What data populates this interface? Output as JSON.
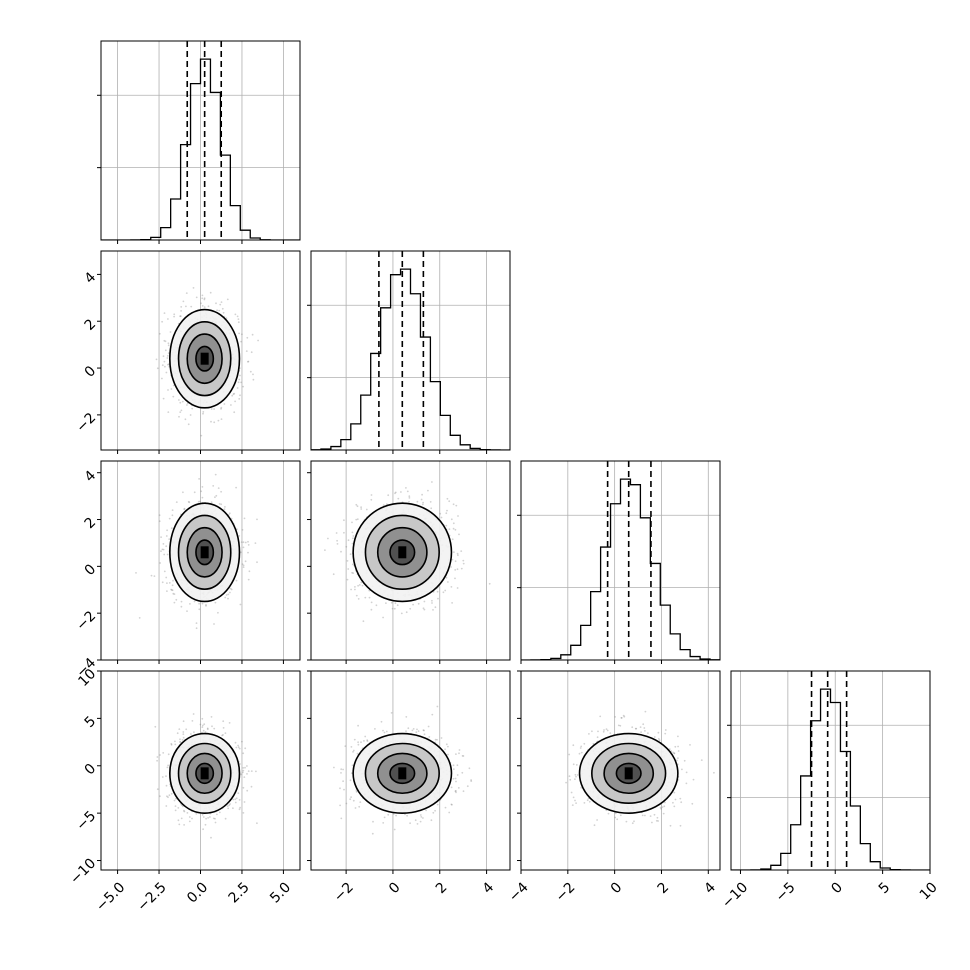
{
  "chart_data": {
    "type": "corner",
    "title": "",
    "parameters": [
      {
        "index": 0,
        "range": [
          -6,
          6
        ],
        "ticks": [
          -5.0,
          -2.5,
          0.0,
          2.5,
          5.0
        ],
        "tick_labels": [
          "−5.0",
          "−2.5",
          "0.0",
          "2.5",
          "5.0"
        ],
        "quantiles": [
          -0.8,
          0.25,
          1.25
        ],
        "mean": 0.25,
        "sd": 1.0
      },
      {
        "index": 1,
        "range": [
          -3.5,
          5
        ],
        "ticks": [
          -2,
          0,
          2,
          4
        ],
        "tick_labels": [
          "−2",
          "0",
          "2",
          "4"
        ],
        "quantiles": [
          -0.6,
          0.4,
          1.3
        ],
        "mean": 0.4,
        "sd": 1.0
      },
      {
        "index": 2,
        "range": [
          -4,
          4.5
        ],
        "ticks": [
          -4,
          -2,
          0,
          2,
          4
        ],
        "tick_labels": [
          "−4",
          "−2",
          "0",
          "2",
          "4"
        ],
        "quantiles": [
          -0.3,
          0.6,
          1.55
        ],
        "mean": 0.6,
        "sd": 1.0
      },
      {
        "index": 3,
        "range": [
          -11,
          10
        ],
        "ticks": [
          -10,
          -5,
          0,
          5,
          10
        ],
        "tick_labels": [
          "−10",
          "−5",
          "0",
          "5",
          "10"
        ],
        "quantiles": [
          -2.5,
          -0.8,
          1.2
        ],
        "mean": -0.8,
        "sd": 2.0
      }
    ],
    "diagonal": {
      "type": "histogram",
      "bins": 20,
      "density_peak_normalized": 1.0
    },
    "off_diagonal": {
      "type": "2d-histogram-contour",
      "contour_levels_sigma": [
        0.5,
        1.0,
        1.5,
        2.0
      ],
      "scatter": true
    },
    "grid": true,
    "histogram_ylabels": "hidden",
    "colors": {
      "ink": "#000000",
      "grid": "#b0b0b0",
      "scatter": "#7f7f7f",
      "fill_dark": "#000000"
    }
  }
}
